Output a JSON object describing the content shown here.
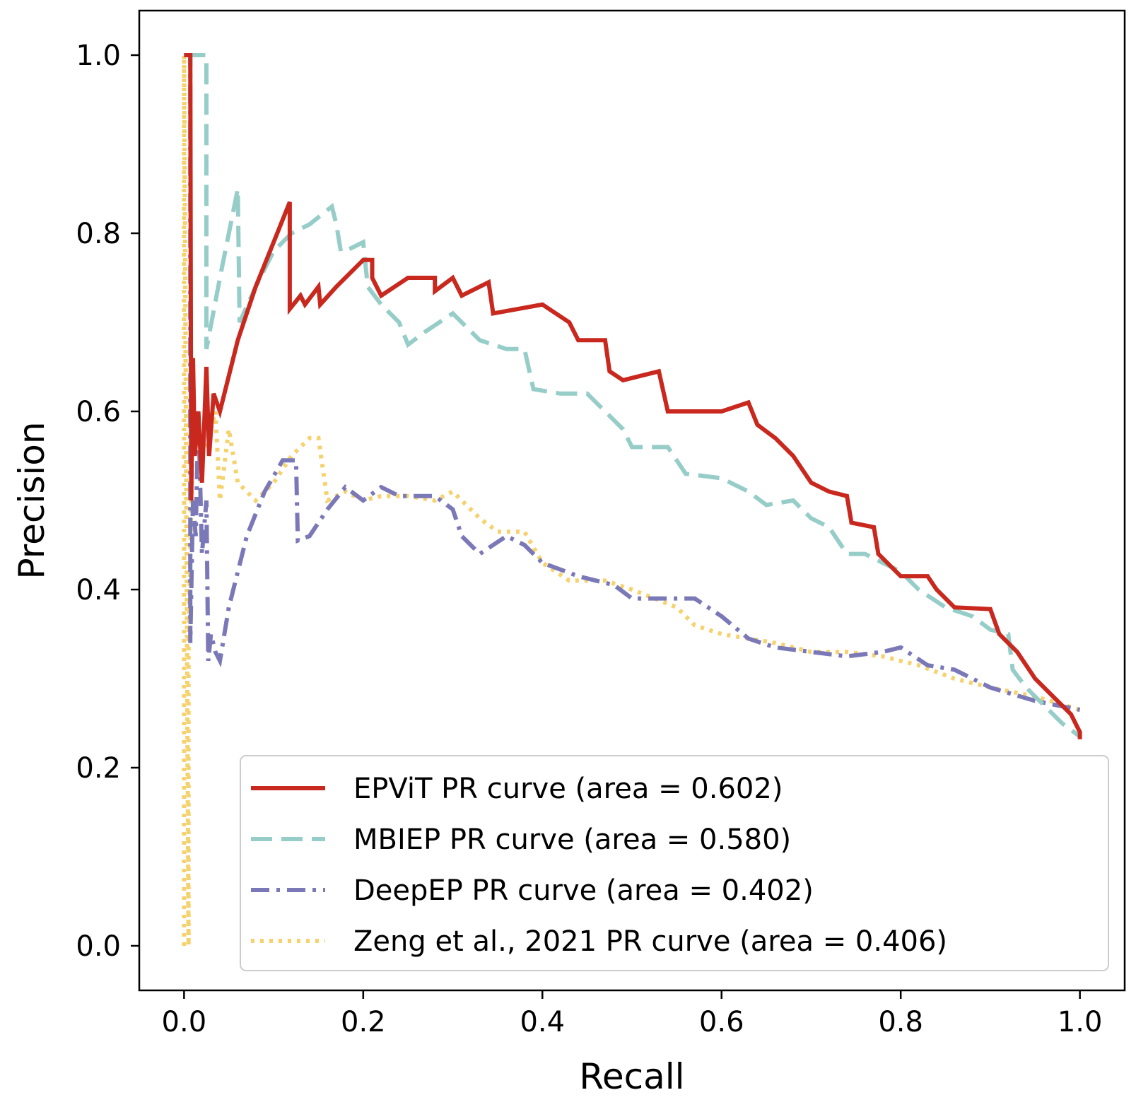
{
  "chart_data": {
    "type": "line",
    "title": "",
    "xlabel": "Recall",
    "ylabel": "Precision",
    "xlim": [
      -0.05,
      1.05
    ],
    "ylim": [
      -0.05,
      1.05
    ],
    "xticks": [
      0.0,
      0.2,
      0.4,
      0.6,
      0.8,
      1.0
    ],
    "yticks": [
      0.0,
      0.2,
      0.4,
      0.6,
      0.8,
      1.0
    ],
    "xtick_labels": [
      "0.0",
      "0.2",
      "0.4",
      "0.6",
      "0.8",
      "1.0"
    ],
    "ytick_labels": [
      "0.0",
      "0.2",
      "0.4",
      "0.6",
      "0.8",
      "1.0"
    ],
    "grid": false,
    "legend_position": "lower-right",
    "series": [
      {
        "name": "EPViT PR curve (area = 0.602)",
        "color": "#c8281e",
        "style": "solid",
        "points": [
          [
            0.0,
            1.0
          ],
          [
            0.007,
            1.0
          ],
          [
            0.008,
            0.5
          ],
          [
            0.01,
            0.66
          ],
          [
            0.012,
            0.55
          ],
          [
            0.016,
            0.6
          ],
          [
            0.02,
            0.52
          ],
          [
            0.025,
            0.65
          ],
          [
            0.028,
            0.55
          ],
          [
            0.033,
            0.62
          ],
          [
            0.04,
            0.6
          ],
          [
            0.06,
            0.68
          ],
          [
            0.08,
            0.74
          ],
          [
            0.1,
            0.79
          ],
          [
            0.118,
            0.835
          ],
          [
            0.118,
            0.715
          ],
          [
            0.13,
            0.73
          ],
          [
            0.135,
            0.72
          ],
          [
            0.15,
            0.74
          ],
          [
            0.152,
            0.72
          ],
          [
            0.17,
            0.74
          ],
          [
            0.2,
            0.77
          ],
          [
            0.21,
            0.77
          ],
          [
            0.21,
            0.75
          ],
          [
            0.22,
            0.73
          ],
          [
            0.25,
            0.75
          ],
          [
            0.28,
            0.75
          ],
          [
            0.28,
            0.735
          ],
          [
            0.3,
            0.75
          ],
          [
            0.31,
            0.73
          ],
          [
            0.34,
            0.745
          ],
          [
            0.345,
            0.71
          ],
          [
            0.4,
            0.72
          ],
          [
            0.43,
            0.7
          ],
          [
            0.44,
            0.68
          ],
          [
            0.47,
            0.68
          ],
          [
            0.475,
            0.645
          ],
          [
            0.49,
            0.635
          ],
          [
            0.53,
            0.645
          ],
          [
            0.54,
            0.6
          ],
          [
            0.57,
            0.6
          ],
          [
            0.6,
            0.6
          ],
          [
            0.63,
            0.61
          ],
          [
            0.64,
            0.585
          ],
          [
            0.66,
            0.57
          ],
          [
            0.68,
            0.55
          ],
          [
            0.7,
            0.52
          ],
          [
            0.72,
            0.51
          ],
          [
            0.74,
            0.505
          ],
          [
            0.745,
            0.475
          ],
          [
            0.77,
            0.47
          ],
          [
            0.775,
            0.44
          ],
          [
            0.8,
            0.415
          ],
          [
            0.83,
            0.415
          ],
          [
            0.84,
            0.4
          ],
          [
            0.86,
            0.38
          ],
          [
            0.9,
            0.378
          ],
          [
            0.91,
            0.35
          ],
          [
            0.93,
            0.33
          ],
          [
            0.95,
            0.3
          ],
          [
            0.97,
            0.28
          ],
          [
            0.99,
            0.26
          ],
          [
            1.0,
            0.24
          ],
          [
            1.0,
            0.232
          ]
        ]
      },
      {
        "name": "MBIEP PR curve (area = 0.580)",
        "color": "#96cdc8",
        "style": "dashed",
        "points": [
          [
            0.0,
            1.0
          ],
          [
            0.025,
            1.0
          ],
          [
            0.025,
            0.67
          ],
          [
            0.04,
            0.75
          ],
          [
            0.06,
            0.85
          ],
          [
            0.062,
            0.7
          ],
          [
            0.08,
            0.74
          ],
          [
            0.1,
            0.78
          ],
          [
            0.12,
            0.8
          ],
          [
            0.14,
            0.81
          ],
          [
            0.165,
            0.83
          ],
          [
            0.17,
            0.81
          ],
          [
            0.175,
            0.78
          ],
          [
            0.18,
            0.78
          ],
          [
            0.2,
            0.79
          ],
          [
            0.205,
            0.74
          ],
          [
            0.22,
            0.72
          ],
          [
            0.24,
            0.7
          ],
          [
            0.25,
            0.675
          ],
          [
            0.27,
            0.69
          ],
          [
            0.3,
            0.71
          ],
          [
            0.31,
            0.7
          ],
          [
            0.33,
            0.68
          ],
          [
            0.36,
            0.67
          ],
          [
            0.38,
            0.67
          ],
          [
            0.39,
            0.625
          ],
          [
            0.42,
            0.62
          ],
          [
            0.45,
            0.62
          ],
          [
            0.47,
            0.6
          ],
          [
            0.49,
            0.58
          ],
          [
            0.5,
            0.56
          ],
          [
            0.54,
            0.56
          ],
          [
            0.56,
            0.53
          ],
          [
            0.6,
            0.525
          ],
          [
            0.63,
            0.51
          ],
          [
            0.65,
            0.495
          ],
          [
            0.68,
            0.5
          ],
          [
            0.7,
            0.48
          ],
          [
            0.72,
            0.47
          ],
          [
            0.74,
            0.44
          ],
          [
            0.76,
            0.44
          ],
          [
            0.78,
            0.43
          ],
          [
            0.8,
            0.42
          ],
          [
            0.82,
            0.4
          ],
          [
            0.85,
            0.38
          ],
          [
            0.88,
            0.37
          ],
          [
            0.9,
            0.355
          ],
          [
            0.92,
            0.35
          ],
          [
            0.925,
            0.31
          ],
          [
            0.94,
            0.29
          ],
          [
            0.96,
            0.27
          ],
          [
            0.98,
            0.25
          ],
          [
            1.0,
            0.235
          ]
        ]
      },
      {
        "name": "DeepEP PR curve (area = 0.402)",
        "color": "#7b78b8",
        "style": "dashdot",
        "points": [
          [
            0.0,
            1.0
          ],
          [
            0.007,
            1.0
          ],
          [
            0.007,
            0.34
          ],
          [
            0.01,
            0.5
          ],
          [
            0.013,
            0.46
          ],
          [
            0.016,
            0.6
          ],
          [
            0.02,
            0.44
          ],
          [
            0.025,
            0.5
          ],
          [
            0.027,
            0.32
          ],
          [
            0.03,
            0.35
          ],
          [
            0.035,
            0.33
          ],
          [
            0.04,
            0.32
          ],
          [
            0.05,
            0.38
          ],
          [
            0.07,
            0.46
          ],
          [
            0.09,
            0.51
          ],
          [
            0.11,
            0.545
          ],
          [
            0.125,
            0.545
          ],
          [
            0.127,
            0.455
          ],
          [
            0.14,
            0.46
          ],
          [
            0.16,
            0.49
          ],
          [
            0.18,
            0.515
          ],
          [
            0.2,
            0.5
          ],
          [
            0.22,
            0.515
          ],
          [
            0.24,
            0.505
          ],
          [
            0.28,
            0.505
          ],
          [
            0.3,
            0.49
          ],
          [
            0.31,
            0.46
          ],
          [
            0.32,
            0.45
          ],
          [
            0.33,
            0.44
          ],
          [
            0.36,
            0.46
          ],
          [
            0.38,
            0.45
          ],
          [
            0.4,
            0.43
          ],
          [
            0.44,
            0.415
          ],
          [
            0.48,
            0.405
          ],
          [
            0.5,
            0.39
          ],
          [
            0.54,
            0.39
          ],
          [
            0.57,
            0.39
          ],
          [
            0.6,
            0.37
          ],
          [
            0.63,
            0.345
          ],
          [
            0.66,
            0.335
          ],
          [
            0.7,
            0.33
          ],
          [
            0.74,
            0.325
          ],
          [
            0.78,
            0.33
          ],
          [
            0.8,
            0.335
          ],
          [
            0.83,
            0.315
          ],
          [
            0.86,
            0.31
          ],
          [
            0.88,
            0.3
          ],
          [
            0.9,
            0.29
          ],
          [
            0.95,
            0.275
          ],
          [
            1.0,
            0.265
          ]
        ]
      },
      {
        "name": "Zeng et al., 2021 PR curve (area = 0.406)",
        "color": "#f5d26e",
        "style": "dotted",
        "points": [
          [
            0.0,
            0.0
          ],
          [
            0.0,
            1.0
          ],
          [
            0.005,
            0.0
          ],
          [
            0.005,
            0.33
          ],
          [
            0.01,
            0.6
          ],
          [
            0.02,
            0.55
          ],
          [
            0.03,
            0.58
          ],
          [
            0.035,
            0.6
          ],
          [
            0.04,
            0.5
          ],
          [
            0.05,
            0.58
          ],
          [
            0.06,
            0.52
          ],
          [
            0.08,
            0.5
          ],
          [
            0.1,
            0.52
          ],
          [
            0.12,
            0.55
          ],
          [
            0.14,
            0.57
          ],
          [
            0.15,
            0.57
          ],
          [
            0.16,
            0.5
          ],
          [
            0.18,
            0.51
          ],
          [
            0.2,
            0.5
          ],
          [
            0.22,
            0.505
          ],
          [
            0.25,
            0.505
          ],
          [
            0.28,
            0.5
          ],
          [
            0.3,
            0.51
          ],
          [
            0.33,
            0.48
          ],
          [
            0.35,
            0.465
          ],
          [
            0.38,
            0.465
          ],
          [
            0.4,
            0.43
          ],
          [
            0.43,
            0.41
          ],
          [
            0.47,
            0.41
          ],
          [
            0.5,
            0.4
          ],
          [
            0.55,
            0.38
          ],
          [
            0.57,
            0.36
          ],
          [
            0.6,
            0.35
          ],
          [
            0.63,
            0.345
          ],
          [
            0.66,
            0.34
          ],
          [
            0.7,
            0.33
          ],
          [
            0.74,
            0.33
          ],
          [
            0.78,
            0.325
          ],
          [
            0.82,
            0.315
          ],
          [
            0.86,
            0.3
          ],
          [
            0.9,
            0.29
          ],
          [
            0.95,
            0.28
          ],
          [
            1.0,
            0.265
          ]
        ]
      }
    ]
  }
}
